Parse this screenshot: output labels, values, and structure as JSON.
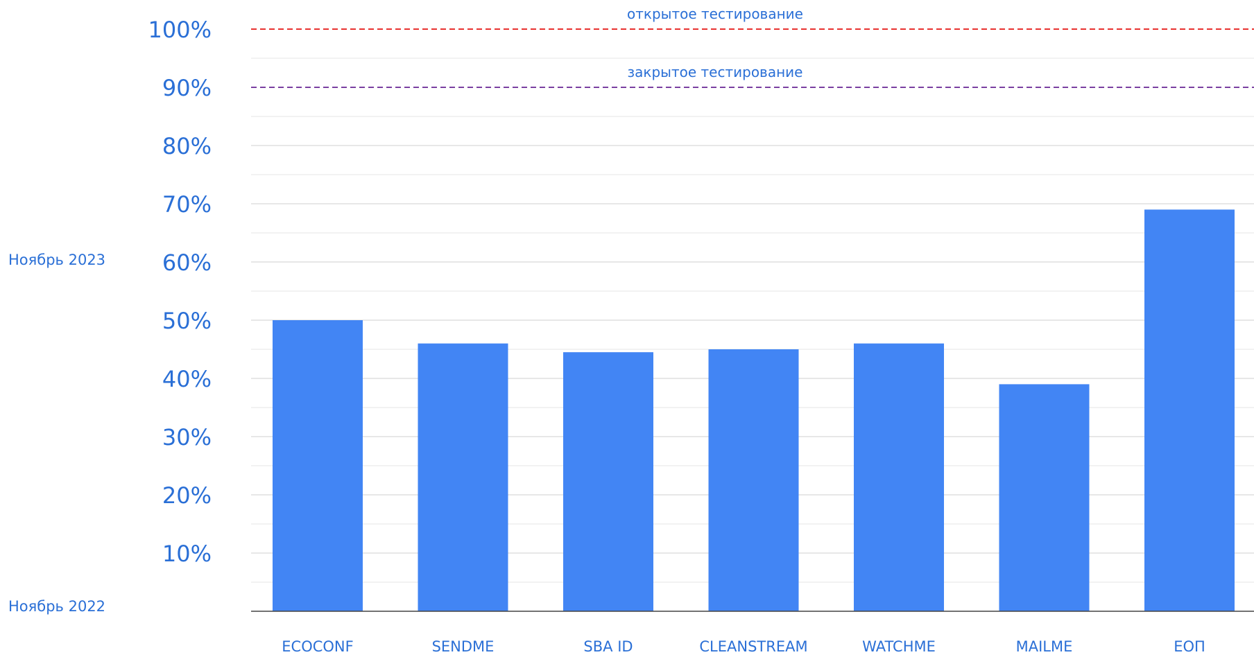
{
  "chart_data": {
    "type": "bar",
    "categories": [
      "ECOCONF",
      "SENDME",
      "SBA ID",
      "CLEANSTREAM",
      "WATCHME",
      "MAILME",
      "ЕОП"
    ],
    "values": [
      50,
      46,
      44.5,
      45,
      46,
      39,
      69
    ],
    "ylim": [
      0,
      100
    ],
    "yticks": [
      "10%",
      "20%",
      "30%",
      "40%",
      "50%",
      "60%",
      "70%",
      "80%",
      "90%",
      "100%"
    ],
    "ytick_values": [
      10,
      20,
      30,
      40,
      50,
      60,
      70,
      80,
      90,
      100
    ],
    "grid": true,
    "reference_lines": [
      {
        "value": 100,
        "label": "открытое тестирование",
        "color": "#e8312f",
        "style": "dashed"
      },
      {
        "value": 90,
        "label": "закрытое тестирование",
        "color": "#7a3fa0",
        "style": "dashed"
      }
    ],
    "side_labels": {
      "top": "Ноябрь 2023",
      "bottom": "Ноябрь 2022"
    },
    "colors": {
      "bar": "#4285f4",
      "text": "#2a6fd6",
      "grid": "#d9d9d9",
      "axis": "#444444"
    }
  }
}
